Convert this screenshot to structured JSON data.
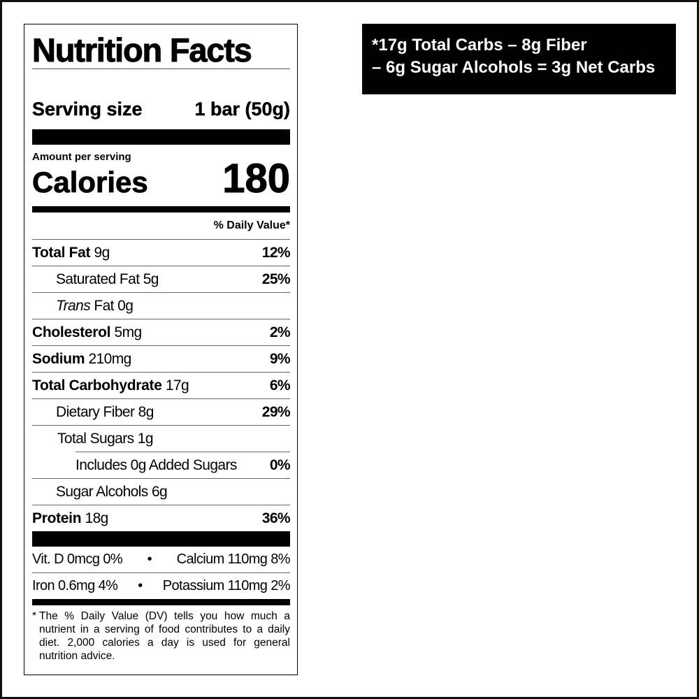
{
  "label": {
    "title": "Nutrition Facts",
    "serving_label": "Serving size",
    "serving_value": "1 bar (50g)",
    "amount_per_serving": "Amount per serving",
    "calories_label": "Calories",
    "calories_value": "180",
    "daily_value_header": "% Daily Value*",
    "nutrients": [
      {
        "name": "Total Fat",
        "amount": "9g",
        "dv": "12%"
      },
      {
        "name": "Saturated Fat",
        "amount": "5g",
        "dv": "25%"
      },
      {
        "name": "Trans",
        "suffix": "Fat",
        "amount": "0g",
        "dv": ""
      },
      {
        "name": "Cholesterol",
        "amount": "5mg",
        "dv": "2%"
      },
      {
        "name": "Sodium",
        "amount": "210mg",
        "dv": "9%"
      },
      {
        "name": "Total Carbohydrate",
        "amount": "17g",
        "dv": "6%"
      },
      {
        "name": "Dietary Fiber",
        "amount": "8g",
        "dv": "29%"
      },
      {
        "name": "Total Sugars",
        "amount": "1g",
        "dv": ""
      },
      {
        "name": "Includes 0g Added Sugars",
        "amount": "",
        "dv": "0%"
      },
      {
        "name": "Sugar Alcohols",
        "amount": "6g",
        "dv": ""
      },
      {
        "name": "Protein",
        "amount": "18g",
        "dv": "36%"
      }
    ],
    "vitamins": [
      {
        "left": "Vit. D 0mcg 0%",
        "right": "Calcium 110mg 8%"
      },
      {
        "left": "Iron 0.6mg 4%",
        "right": "Potassium 110mg 2%"
      }
    ],
    "bullet": "•",
    "footnote_star": "*",
    "footnote": "The % Daily Value (DV) tells you how much a nutrient in a serving of food contributes to a daily diet. 2,000 calories a day is used for general nutrition advice."
  },
  "net_carbs": {
    "line1": "*17g Total Carbs – 8g Fiber",
    "line2": "– 6g Sugar Alcohols = 3g Net Carbs",
    "background": "#000000",
    "text_color": "#ffffff"
  }
}
